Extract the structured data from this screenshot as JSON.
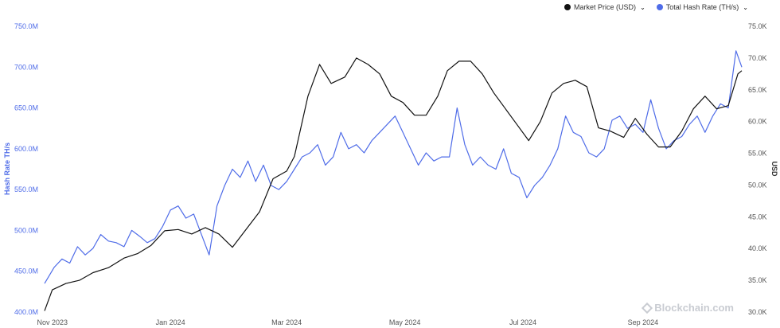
{
  "legend": {
    "price_label": "Market Price (USD)",
    "hash_label": "Total Hash Rate (TH/s)"
  },
  "watermark": "Blockchain.com",
  "colors": {
    "price": "#111111",
    "hash": "#4f6ce8",
    "left_axis_text": "#4f6ce8",
    "right_axis_text": "#555555"
  },
  "chart_data": {
    "type": "line",
    "x_ticks": [
      "Nov 2023",
      "Jan 2024",
      "Mar 2024",
      "May 2024",
      "Jul 2024",
      "Sep 2024"
    ],
    "x_range": [
      "2023-10-28",
      "2024-10-22"
    ],
    "y_left": {
      "label": "Hash Rate TH/s",
      "range": [
        400,
        750
      ],
      "ticks": [
        "400.0M",
        "450.0M",
        "500.0M",
        "550.0M",
        "600.0M",
        "650.0M",
        "700.0M",
        "750.0M"
      ],
      "tick_values": [
        400,
        450,
        500,
        550,
        600,
        650,
        700,
        750
      ]
    },
    "y_right": {
      "label": "USD",
      "range": [
        30,
        75
      ],
      "ticks": [
        "30.0K",
        "35.0K",
        "40.0K",
        "45.0K",
        "50.0K",
        "55.0K",
        "60.0K",
        "65.0K",
        "70.0K",
        "75.0K"
      ],
      "tick_values": [
        30,
        35,
        40,
        45,
        50,
        55,
        60,
        65,
        70,
        75
      ]
    },
    "series": [
      {
        "name": "Market Price (USD)",
        "unit": "K USD",
        "axis": "right",
        "x": [
          "2023-10-28",
          "2023-11-01",
          "2023-11-08",
          "2023-11-15",
          "2023-11-22",
          "2023-11-30",
          "2023-12-08",
          "2023-12-15",
          "2023-12-22",
          "2023-12-29",
          "2024-01-05",
          "2024-01-12",
          "2024-01-19",
          "2024-01-26",
          "2024-02-02",
          "2024-02-09",
          "2024-02-16",
          "2024-02-23",
          "2024-03-01",
          "2024-03-05",
          "2024-03-12",
          "2024-03-18",
          "2024-03-24",
          "2024-03-31",
          "2024-04-06",
          "2024-04-12",
          "2024-04-18",
          "2024-04-24",
          "2024-04-30",
          "2024-05-06",
          "2024-05-12",
          "2024-05-18",
          "2024-05-23",
          "2024-05-29",
          "2024-06-04",
          "2024-06-10",
          "2024-06-16",
          "2024-06-22",
          "2024-06-28",
          "2024-07-04",
          "2024-07-10",
          "2024-07-16",
          "2024-07-22",
          "2024-07-28",
          "2024-08-03",
          "2024-08-09",
          "2024-08-15",
          "2024-08-22",
          "2024-08-28",
          "2024-09-03",
          "2024-09-09",
          "2024-09-15",
          "2024-09-21",
          "2024-09-27",
          "2024-10-03",
          "2024-10-09",
          "2024-10-15",
          "2024-10-20",
          "2024-10-22"
        ],
        "values": [
          30.2,
          33.5,
          34.5,
          35.0,
          36.2,
          37.0,
          38.5,
          39.2,
          40.5,
          42.8,
          43.0,
          42.3,
          43.3,
          42.3,
          40.2,
          43.0,
          45.8,
          51.0,
          52.2,
          54.5,
          64.0,
          69.0,
          66.0,
          67.0,
          70.0,
          69.0,
          67.5,
          64.0,
          63.0,
          61.0,
          61.0,
          64.0,
          68.0,
          69.5,
          69.5,
          67.5,
          64.5,
          62.0,
          59.5,
          57.0,
          60.0,
          64.5,
          66.0,
          66.5,
          65.5,
          59.0,
          58.5,
          57.5,
          60.5,
          58.0,
          56.0,
          56.0,
          58.5,
          62.0,
          64.0,
          62.0,
          62.5,
          67.5,
          68.0
        ]
      },
      {
        "name": "Total Hash Rate (TH/s)",
        "unit": "M TH/s",
        "axis": "left",
        "x": [
          "2023-10-28",
          "2023-11-02",
          "2023-11-06",
          "2023-11-10",
          "2023-11-14",
          "2023-11-18",
          "2023-11-22",
          "2023-11-26",
          "2023-11-30",
          "2023-12-04",
          "2023-12-08",
          "2023-12-12",
          "2023-12-16",
          "2023-12-20",
          "2023-12-24",
          "2023-12-28",
          "2024-01-01",
          "2024-01-05",
          "2024-01-09",
          "2024-01-13",
          "2024-01-17",
          "2024-01-21",
          "2024-01-25",
          "2024-01-29",
          "2024-02-02",
          "2024-02-06",
          "2024-02-10",
          "2024-02-14",
          "2024-02-18",
          "2024-02-22",
          "2024-02-26",
          "2024-03-01",
          "2024-03-05",
          "2024-03-09",
          "2024-03-13",
          "2024-03-17",
          "2024-03-21",
          "2024-03-25",
          "2024-03-29",
          "2024-04-02",
          "2024-04-06",
          "2024-04-10",
          "2024-04-14",
          "2024-04-18",
          "2024-04-22",
          "2024-04-26",
          "2024-04-30",
          "2024-05-04",
          "2024-05-08",
          "2024-05-12",
          "2024-05-16",
          "2024-05-20",
          "2024-05-24",
          "2024-05-28",
          "2024-06-01",
          "2024-06-05",
          "2024-06-09",
          "2024-06-13",
          "2024-06-17",
          "2024-06-21",
          "2024-06-25",
          "2024-06-29",
          "2024-07-03",
          "2024-07-07",
          "2024-07-11",
          "2024-07-15",
          "2024-07-19",
          "2024-07-23",
          "2024-07-27",
          "2024-07-31",
          "2024-08-04",
          "2024-08-08",
          "2024-08-12",
          "2024-08-16",
          "2024-08-20",
          "2024-08-24",
          "2024-08-28",
          "2024-09-01",
          "2024-09-05",
          "2024-09-09",
          "2024-09-13",
          "2024-09-17",
          "2024-09-21",
          "2024-09-25",
          "2024-09-29",
          "2024-10-03",
          "2024-10-07",
          "2024-10-11",
          "2024-10-15",
          "2024-10-19",
          "2024-10-22"
        ],
        "values": [
          435,
          455,
          465,
          460,
          480,
          470,
          478,
          495,
          487,
          485,
          480,
          500,
          493,
          485,
          490,
          505,
          525,
          530,
          515,
          520,
          495,
          470,
          530,
          555,
          575,
          565,
          585,
          560,
          580,
          555,
          550,
          560,
          575,
          590,
          595,
          605,
          580,
          590,
          620,
          600,
          605,
          595,
          610,
          620,
          630,
          640,
          620,
          600,
          580,
          595,
          585,
          590,
          590,
          650,
          605,
          580,
          590,
          580,
          575,
          600,
          570,
          565,
          540,
          555,
          565,
          580,
          600,
          640,
          620,
          615,
          595,
          590,
          600,
          635,
          640,
          625,
          630,
          620,
          660,
          625,
          600,
          610,
          615,
          630,
          640,
          620,
          640,
          655,
          650,
          720,
          700
        ]
      }
    ]
  }
}
